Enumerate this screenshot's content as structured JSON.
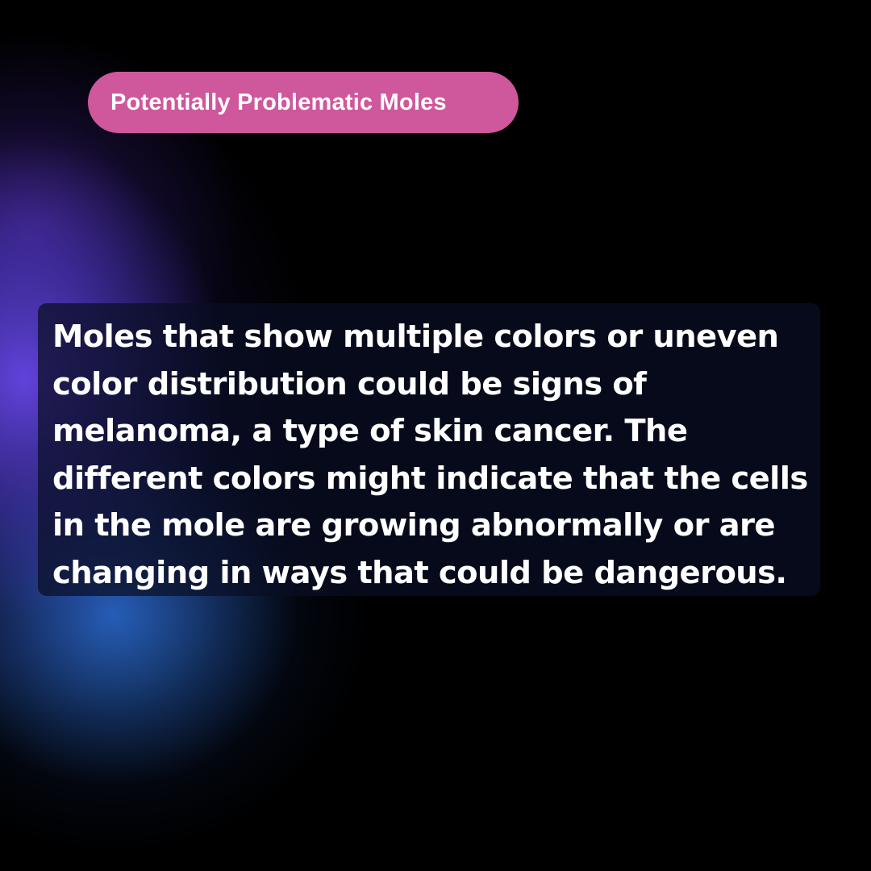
{
  "title_pill": {
    "label": "Potentially Problematic Moles"
  },
  "body": {
    "text": "Moles that show multiple colors or uneven color distribution could be signs of melanoma, a type of skin cancer. The different colors might indicate that the cells in the mole are growing abnormally or are changing in ways that could be dangerous."
  },
  "colors": {
    "background": "#000000",
    "pill": "#cf579c",
    "glow_purple": "#6646e6",
    "glow_blue": "#2d78e1",
    "text": "#ffffff"
  }
}
